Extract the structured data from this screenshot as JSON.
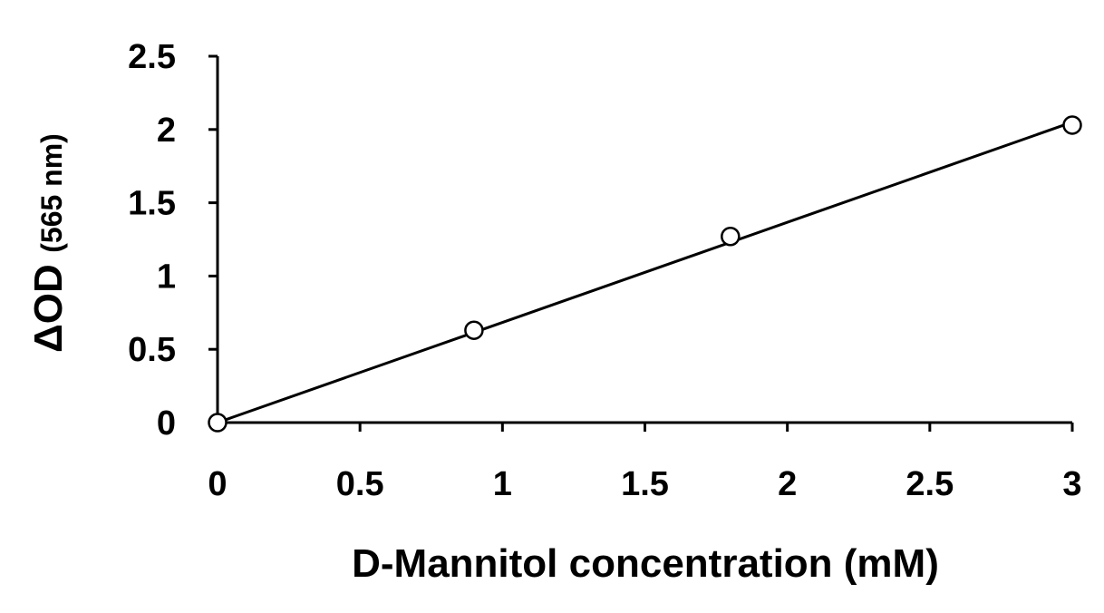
{
  "chart_data": {
    "type": "scatter",
    "title": "",
    "xlabel": "D-Mannitol concentration (mM)",
    "ylabel": "ΔOD",
    "ylabel_unit": "(565 nm)",
    "xlim": [
      0,
      3
    ],
    "ylim": [
      0,
      2.5
    ],
    "x_ticks": [
      "0",
      "0.5",
      "1",
      "1.5",
      "2",
      "2.5",
      "3"
    ],
    "y_ticks": [
      "0",
      "0.5",
      "1",
      "1.5",
      "2",
      "2.5"
    ],
    "grid": false,
    "legend": "none",
    "series": [
      {
        "marker": "open-circle",
        "line": "linear-fit",
        "x": [
          0,
          0.9,
          1.8,
          3.0
        ],
        "y": [
          0.0,
          0.63,
          1.27,
          2.03
        ]
      }
    ],
    "fit_line": {
      "x": [
        0,
        3.0
      ],
      "y": [
        0.0,
        2.05
      ]
    },
    "colors": {
      "line": "#000000",
      "marker_edge": "#000000",
      "marker_fill": "#ffffff"
    }
  }
}
